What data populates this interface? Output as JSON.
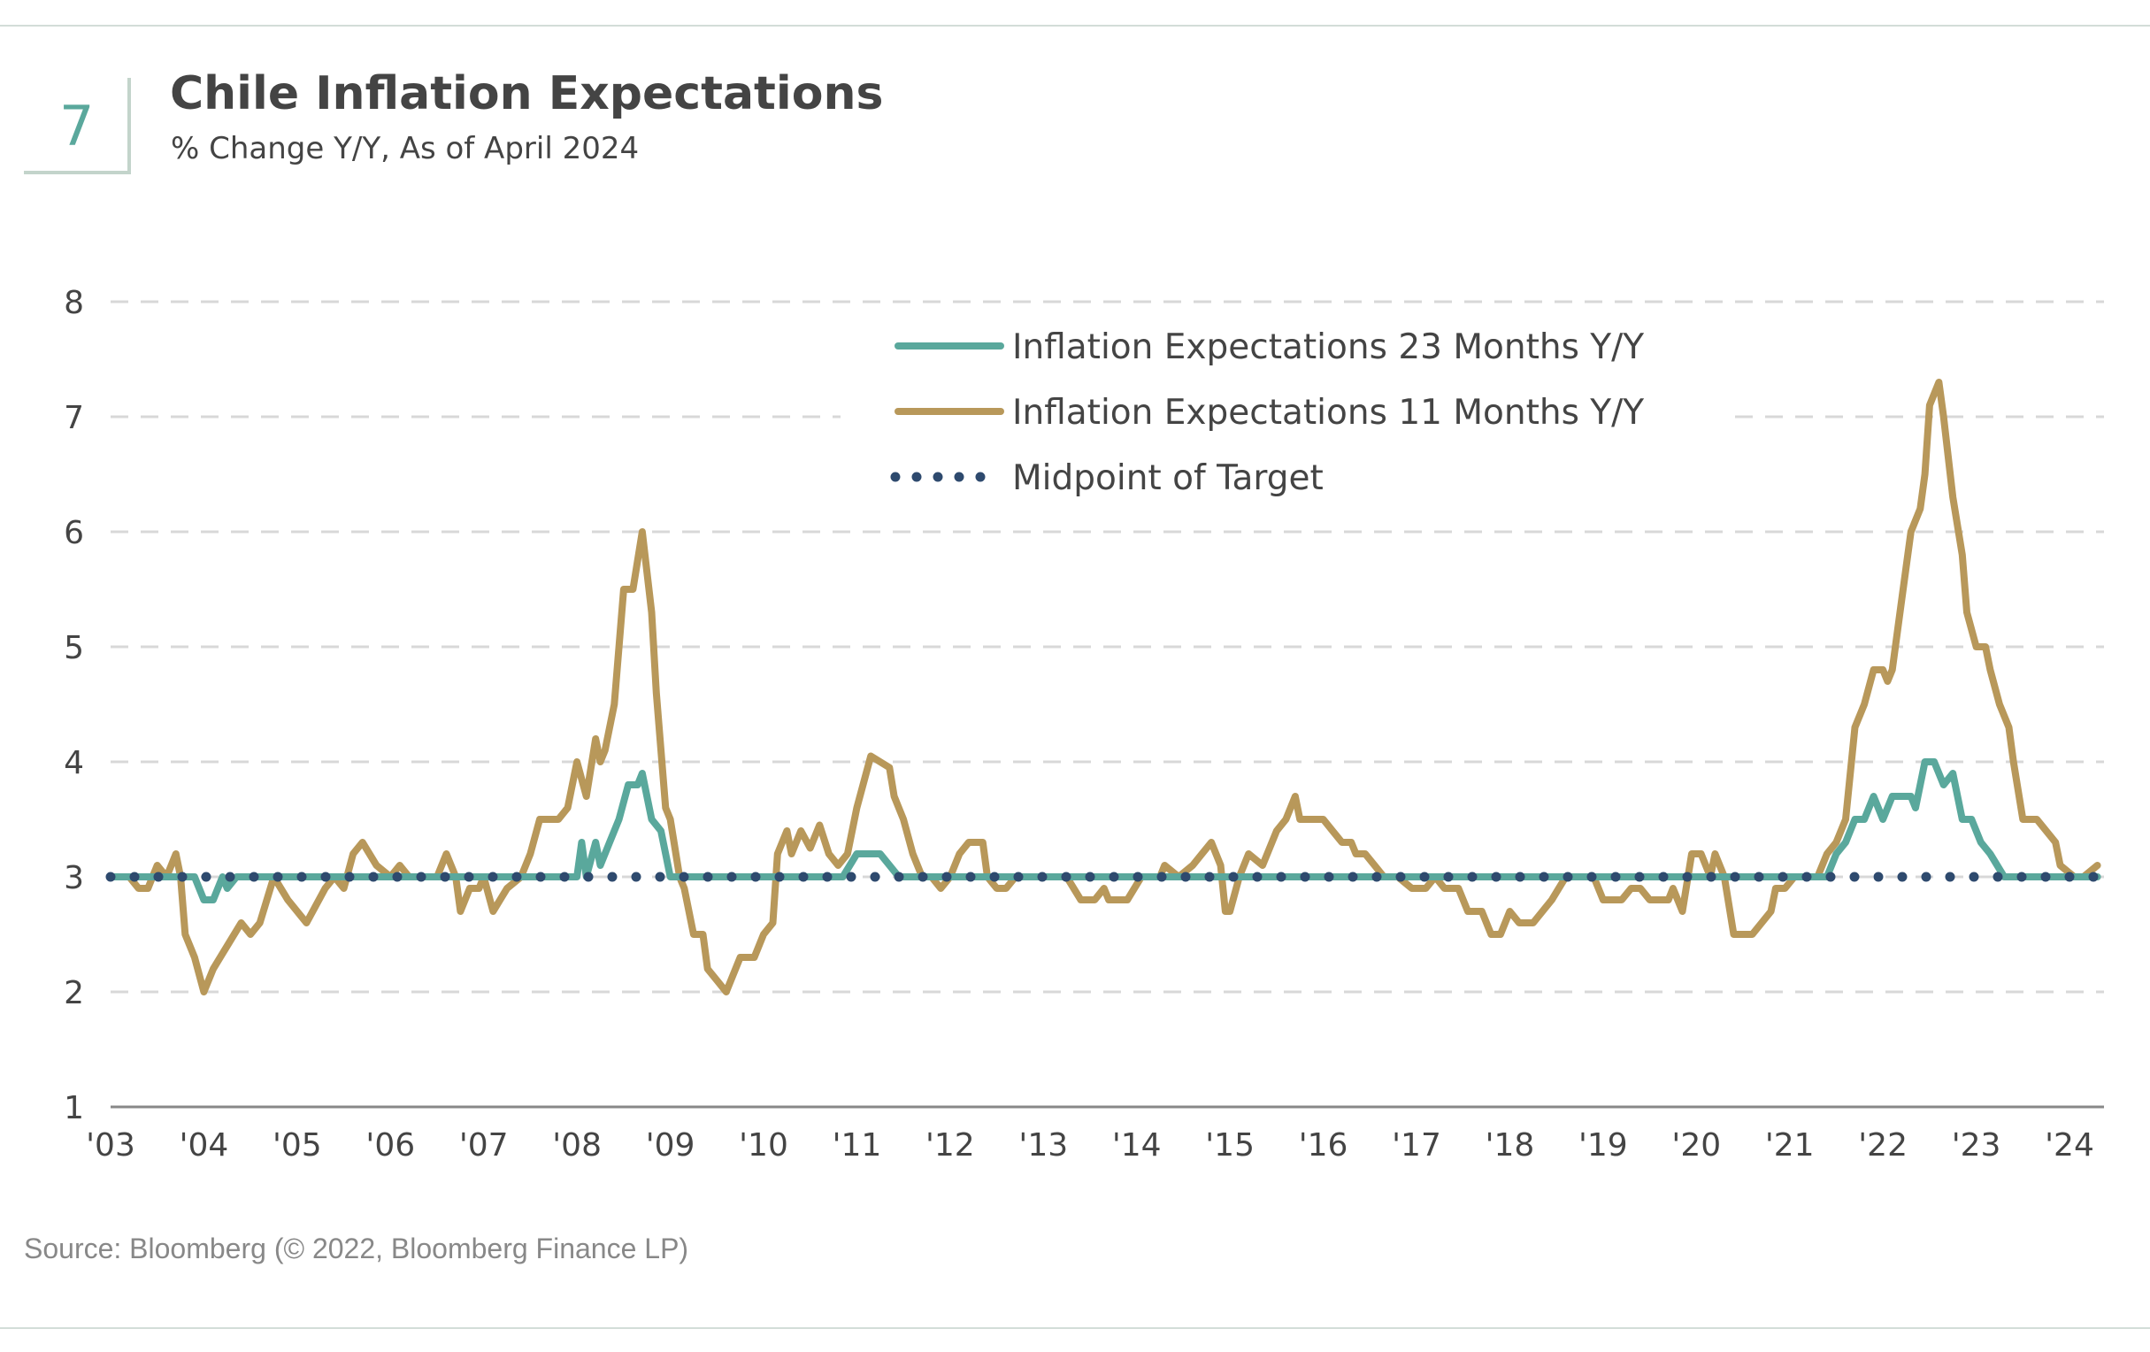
{
  "figure_number": "7",
  "source": "Source: Bloomberg (© 2022, Bloomberg Finance LP)",
  "chart_data": {
    "type": "line",
    "title": "Chile Inflation Expectations",
    "subtitle": "% Change Y/Y, As of April 2024",
    "xlabel": "",
    "ylabel": "",
    "xlim": [
      2003,
      2024.35
    ],
    "ylim": [
      1,
      8
    ],
    "y_ticks": [
      "1",
      "2",
      "3",
      "4",
      "5",
      "6",
      "7",
      "8"
    ],
    "x_ticks": [
      {
        "label": "'03",
        "x": 2003
      },
      {
        "label": "'04",
        "x": 2004
      },
      {
        "label": "'05",
        "x": 2005
      },
      {
        "label": "'06",
        "x": 2006
      },
      {
        "label": "'07",
        "x": 2007
      },
      {
        "label": "'08",
        "x": 2008
      },
      {
        "label": "'09",
        "x": 2009
      },
      {
        "label": "'10",
        "x": 2010
      },
      {
        "label": "'11",
        "x": 2011
      },
      {
        "label": "'12",
        "x": 2012
      },
      {
        "label": "'13",
        "x": 2013
      },
      {
        "label": "'14",
        "x": 2014
      },
      {
        "label": "'15",
        "x": 2015
      },
      {
        "label": "'16",
        "x": 2016
      },
      {
        "label": "'17",
        "x": 2017
      },
      {
        "label": "'18",
        "x": 2018
      },
      {
        "label": "'19",
        "x": 2019
      },
      {
        "label": "'20",
        "x": 2020
      },
      {
        "label": "'21",
        "x": 2021
      },
      {
        "label": "'22",
        "x": 2022
      },
      {
        "label": "'23",
        "x": 2023
      },
      {
        "label": "'24",
        "x": 2024
      }
    ],
    "grid": "horizontal dashed",
    "legend_placement": "top-center",
    "series": [
      {
        "name": "Inflation Expectations 23 Months Y/Y",
        "color": "#5aa89c",
        "style": "solid",
        "points": [
          [
            2003,
            3
          ],
          [
            2003.9,
            3
          ],
          [
            2004,
            2.8
          ],
          [
            2004.1,
            2.8
          ],
          [
            2004.2,
            3
          ],
          [
            2004.25,
            2.9
          ],
          [
            2004.35,
            3
          ],
          [
            2008,
            3
          ],
          [
            2008.05,
            3.3
          ],
          [
            2008.1,
            3
          ],
          [
            2008.2,
            3.3
          ],
          [
            2008.25,
            3.1
          ],
          [
            2008.35,
            3.3
          ],
          [
            2008.45,
            3.5
          ],
          [
            2008.55,
            3.8
          ],
          [
            2008.65,
            3.8
          ],
          [
            2008.7,
            3.9
          ],
          [
            2008.8,
            3.5
          ],
          [
            2008.9,
            3.4
          ],
          [
            2009,
            3
          ],
          [
            2010.85,
            3
          ],
          [
            2011,
            3.2
          ],
          [
            2011.25,
            3.2
          ],
          [
            2011.45,
            3
          ],
          [
            2021.4,
            3
          ],
          [
            2021.5,
            3.2
          ],
          [
            2021.6,
            3.3
          ],
          [
            2021.7,
            3.5
          ],
          [
            2021.8,
            3.5
          ],
          [
            2021.9,
            3.7
          ],
          [
            2022,
            3.5
          ],
          [
            2022.1,
            3.7
          ],
          [
            2022.3,
            3.7
          ],
          [
            2022.35,
            3.6
          ],
          [
            2022.45,
            4
          ],
          [
            2022.55,
            4
          ],
          [
            2022.65,
            3.8
          ],
          [
            2022.75,
            3.9
          ],
          [
            2022.85,
            3.5
          ],
          [
            2022.95,
            3.5
          ],
          [
            2023.05,
            3.3
          ],
          [
            2023.15,
            3.2
          ],
          [
            2023.3,
            3
          ],
          [
            2024.3,
            3
          ]
        ]
      },
      {
        "name": "Inflation Expectations 11 Months Y/Y",
        "color": "#b8985a",
        "style": "solid",
        "points": [
          [
            2003,
            3
          ],
          [
            2003.2,
            3
          ],
          [
            2003.3,
            2.9
          ],
          [
            2003.4,
            2.9
          ],
          [
            2003.5,
            3.1
          ],
          [
            2003.6,
            3
          ],
          [
            2003.7,
            3.2
          ],
          [
            2003.75,
            3
          ],
          [
            2003.8,
            2.5
          ],
          [
            2003.9,
            2.3
          ],
          [
            2004,
            2
          ],
          [
            2004.1,
            2.2
          ],
          [
            2004.25,
            2.4
          ],
          [
            2004.4,
            2.6
          ],
          [
            2004.5,
            2.5
          ],
          [
            2004.6,
            2.6
          ],
          [
            2004.75,
            3
          ],
          [
            2004.9,
            2.8
          ],
          [
            2005.1,
            2.6
          ],
          [
            2005.3,
            2.9
          ],
          [
            2005.4,
            3
          ],
          [
            2005.5,
            2.9
          ],
          [
            2005.6,
            3.2
          ],
          [
            2005.7,
            3.3
          ],
          [
            2005.85,
            3.1
          ],
          [
            2006,
            3
          ],
          [
            2006.1,
            3.1
          ],
          [
            2006.2,
            3
          ],
          [
            2006.5,
            3
          ],
          [
            2006.6,
            3.2
          ],
          [
            2006.7,
            3
          ],
          [
            2006.75,
            2.7
          ],
          [
            2006.85,
            2.9
          ],
          [
            2006.95,
            2.9
          ],
          [
            2007,
            3
          ],
          [
            2007.1,
            2.7
          ],
          [
            2007.25,
            2.9
          ],
          [
            2007.4,
            3
          ],
          [
            2007.5,
            3.2
          ],
          [
            2007.6,
            3.5
          ],
          [
            2007.8,
            3.5
          ],
          [
            2007.9,
            3.6
          ],
          [
            2008,
            4
          ],
          [
            2008.1,
            3.7
          ],
          [
            2008.2,
            4.2
          ],
          [
            2008.25,
            4
          ],
          [
            2008.3,
            4.1
          ],
          [
            2008.4,
            4.5
          ],
          [
            2008.5,
            5.5
          ],
          [
            2008.6,
            5.5
          ],
          [
            2008.7,
            6
          ],
          [
            2008.8,
            5.3
          ],
          [
            2008.85,
            4.6
          ],
          [
            2008.95,
            3.6
          ],
          [
            2009,
            3.5
          ],
          [
            2009.1,
            3
          ],
          [
            2009.15,
            2.9
          ],
          [
            2009.25,
            2.5
          ],
          [
            2009.35,
            2.5
          ],
          [
            2009.4,
            2.2
          ],
          [
            2009.5,
            2.1
          ],
          [
            2009.6,
            2
          ],
          [
            2009.75,
            2.3
          ],
          [
            2009.9,
            2.3
          ],
          [
            2010,
            2.5
          ],
          [
            2010.1,
            2.6
          ],
          [
            2010.15,
            3.2
          ],
          [
            2010.25,
            3.4
          ],
          [
            2010.3,
            3.2
          ],
          [
            2010.4,
            3.4
          ],
          [
            2010.5,
            3.25
          ],
          [
            2010.6,
            3.45
          ],
          [
            2010.7,
            3.2
          ],
          [
            2010.8,
            3.1
          ],
          [
            2010.9,
            3.2
          ],
          [
            2011,
            3.6
          ],
          [
            2011.15,
            4.05
          ],
          [
            2011.35,
            3.95
          ],
          [
            2011.4,
            3.7
          ],
          [
            2011.5,
            3.5
          ],
          [
            2011.6,
            3.2
          ],
          [
            2011.7,
            3
          ],
          [
            2011.8,
            3
          ],
          [
            2011.9,
            2.9
          ],
          [
            2012,
            3
          ],
          [
            2012.1,
            3.2
          ],
          [
            2012.2,
            3.3
          ],
          [
            2012.35,
            3.3
          ],
          [
            2012.4,
            3
          ],
          [
            2012.5,
            2.9
          ],
          [
            2012.6,
            2.9
          ],
          [
            2012.7,
            3
          ],
          [
            2013.25,
            3
          ],
          [
            2013.4,
            2.8
          ],
          [
            2013.55,
            2.8
          ],
          [
            2013.65,
            2.9
          ],
          [
            2013.7,
            2.8
          ],
          [
            2013.9,
            2.8
          ],
          [
            2014.05,
            3
          ],
          [
            2014.25,
            3
          ],
          [
            2014.3,
            3.1
          ],
          [
            2014.45,
            3
          ],
          [
            2014.6,
            3.1
          ],
          [
            2014.7,
            3.2
          ],
          [
            2014.8,
            3.3
          ],
          [
            2014.9,
            3.1
          ],
          [
            2014.95,
            2.7
          ],
          [
            2015,
            2.7
          ],
          [
            2015.1,
            3
          ],
          [
            2015.2,
            3.2
          ],
          [
            2015.35,
            3.1
          ],
          [
            2015.4,
            3.2
          ],
          [
            2015.5,
            3.4
          ],
          [
            2015.6,
            3.5
          ],
          [
            2015.7,
            3.7
          ],
          [
            2015.75,
            3.5
          ],
          [
            2016,
            3.5
          ],
          [
            2016.1,
            3.4
          ],
          [
            2016.2,
            3.3
          ],
          [
            2016.3,
            3.3
          ],
          [
            2016.35,
            3.2
          ],
          [
            2016.45,
            3.2
          ],
          [
            2016.55,
            3.1
          ],
          [
            2016.65,
            3
          ],
          [
            2016.8,
            3
          ],
          [
            2016.95,
            2.9
          ],
          [
            2017.1,
            2.9
          ],
          [
            2017.2,
            3
          ],
          [
            2017.3,
            2.9
          ],
          [
            2017.45,
            2.9
          ],
          [
            2017.55,
            2.7
          ],
          [
            2017.7,
            2.7
          ],
          [
            2017.8,
            2.5
          ],
          [
            2017.9,
            2.5
          ],
          [
            2018,
            2.7
          ],
          [
            2018.1,
            2.6
          ],
          [
            2018.25,
            2.6
          ],
          [
            2018.45,
            2.8
          ],
          [
            2018.6,
            3
          ],
          [
            2018.9,
            3
          ],
          [
            2019,
            2.8
          ],
          [
            2019.2,
            2.8
          ],
          [
            2019.3,
            2.9
          ],
          [
            2019.4,
            2.9
          ],
          [
            2019.5,
            2.8
          ],
          [
            2019.7,
            2.8
          ],
          [
            2019.75,
            2.9
          ],
          [
            2019.85,
            2.7
          ],
          [
            2019.95,
            3.2
          ],
          [
            2020.05,
            3.2
          ],
          [
            2020.15,
            3
          ],
          [
            2020.2,
            3.2
          ],
          [
            2020.3,
            3
          ],
          [
            2020.4,
            2.5
          ],
          [
            2020.6,
            2.5
          ],
          [
            2020.8,
            2.7
          ],
          [
            2020.85,
            2.9
          ],
          [
            2020.95,
            2.9
          ],
          [
            2021.05,
            3
          ],
          [
            2021.3,
            3
          ],
          [
            2021.4,
            3.2
          ],
          [
            2021.5,
            3.3
          ],
          [
            2021.6,
            3.5
          ],
          [
            2021.7,
            4.3
          ],
          [
            2021.8,
            4.5
          ],
          [
            2021.9,
            4.8
          ],
          [
            2022,
            4.8
          ],
          [
            2022.05,
            4.7
          ],
          [
            2022.1,
            4.8
          ],
          [
            2022.2,
            5.4
          ],
          [
            2022.3,
            6
          ],
          [
            2022.4,
            6.2
          ],
          [
            2022.45,
            6.5
          ],
          [
            2022.5,
            7.1
          ],
          [
            2022.6,
            7.3
          ],
          [
            2022.65,
            7
          ],
          [
            2022.75,
            6.3
          ],
          [
            2022.85,
            5.8
          ],
          [
            2022.9,
            5.3
          ],
          [
            2023,
            5
          ],
          [
            2023.1,
            5
          ],
          [
            2023.15,
            4.8
          ],
          [
            2023.25,
            4.5
          ],
          [
            2023.35,
            4.3
          ],
          [
            2023.4,
            4
          ],
          [
            2023.5,
            3.5
          ],
          [
            2023.65,
            3.5
          ],
          [
            2023.85,
            3.3
          ],
          [
            2023.9,
            3.1
          ],
          [
            2024.05,
            3
          ],
          [
            2024.15,
            3
          ],
          [
            2024.3,
            3.1
          ]
        ]
      },
      {
        "name": "Midpoint of Target",
        "color": "#2e4a6e",
        "style": "dotted",
        "points": [
          [
            2003,
            3
          ],
          [
            2024.3,
            3
          ]
        ]
      }
    ]
  }
}
